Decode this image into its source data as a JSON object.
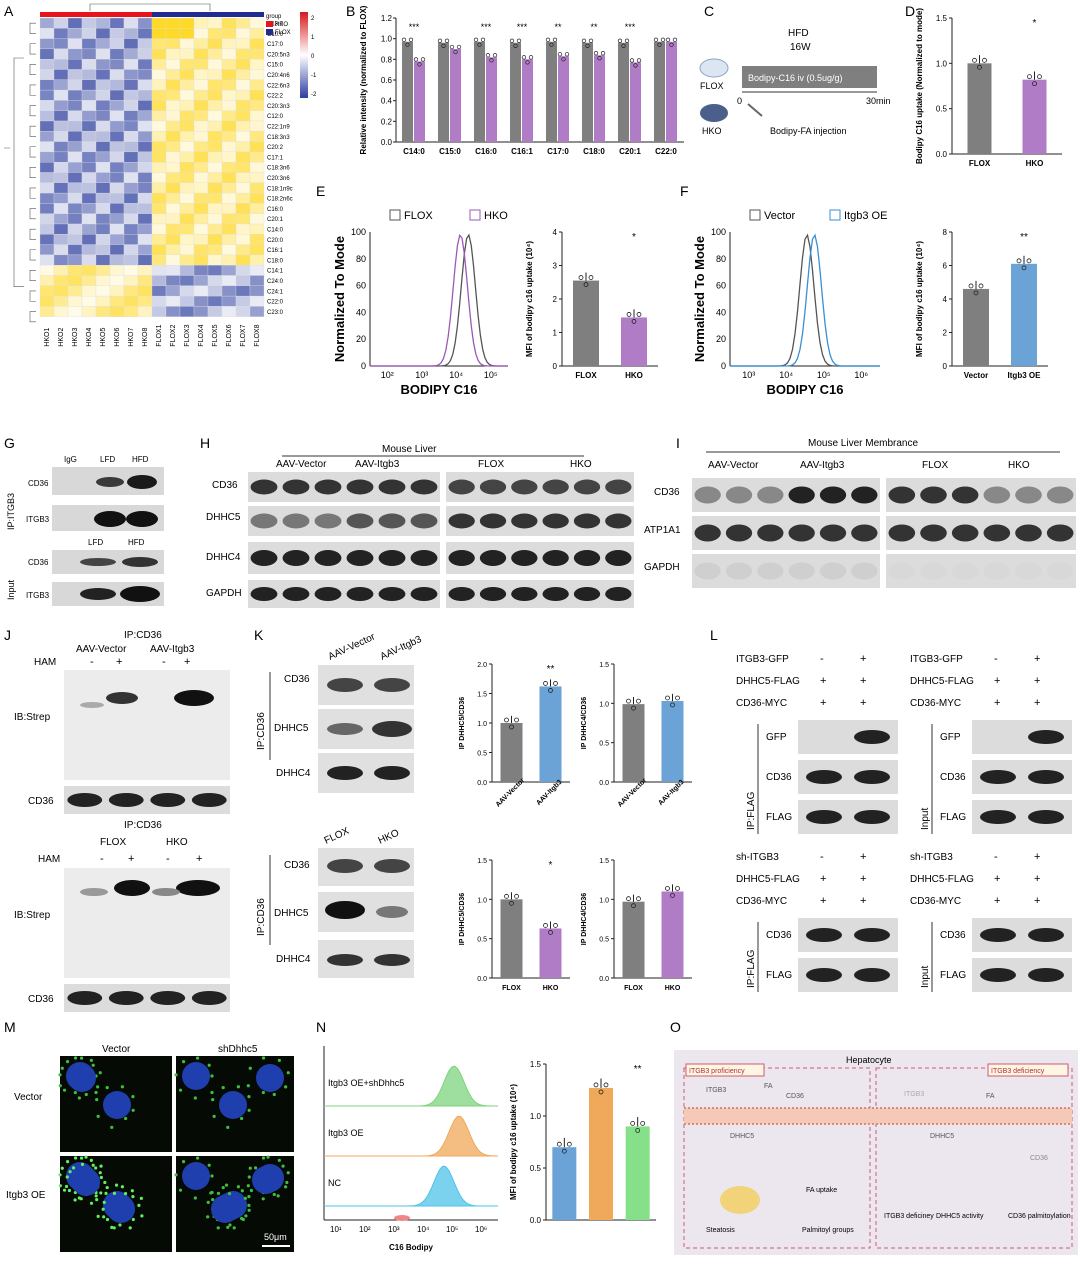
{
  "panels": {
    "A": "A",
    "B": "B",
    "C": "C",
    "D": "D",
    "E": "E",
    "F": "F",
    "G": "G",
    "H": "H",
    "I": "I",
    "J": "J",
    "K": "K",
    "L": "L",
    "M": "M",
    "N": "N",
    "O": "O"
  },
  "heatmap": {
    "rows": [
      "C13:0",
      "C10:0",
      "C17:0",
      "C20:5n3",
      "C15:0",
      "C20:4n6",
      "C22:6n3",
      "C22:2",
      "C20:3n3",
      "C12:0",
      "C22:1n9",
      "C18:3n3",
      "C20:2",
      "C17:1",
      "C18:3n6",
      "C20:3n6",
      "C18:1n9c",
      "C18:2n6c",
      "C16:0",
      "C20:1",
      "C14:0",
      "C20:0",
      "C16:1",
      "C18:0",
      "C14:1",
      "C24:0",
      "C24:1",
      "C22:0",
      "C23:0"
    ],
    "cols": [
      "HKO1",
      "HKO2",
      "HKO3",
      "HKO4",
      "HKO5",
      "HKO6",
      "HKO7",
      "HKO8",
      "FLOX1",
      "FLOX2",
      "FLOX3",
      "FLOX4",
      "FLOX5",
      "FLOX6",
      "FLOX7",
      "FLOX8"
    ],
    "legend_title": "group",
    "legend_hko": "HKO",
    "legend_flox": "FLOX",
    "scale_ticks": [
      "2",
      "1",
      "0",
      "-1",
      "-2"
    ],
    "colors": {
      "high": "#d7191c",
      "mid": "#ffffff",
      "low": "#2c3e9f",
      "hko": "#e8141b",
      "flox": "#1f2b8f"
    }
  },
  "chart_data": [
    {
      "type": "bar",
      "panel": "B",
      "ylabel": "Relative intensity (normalized to FLOX)",
      "ylim": [
        0,
        1.2
      ],
      "yticks": [
        "0.0",
        "0.2",
        "0.4",
        "0.6",
        "0.8",
        "1.0",
        "1.2"
      ],
      "categories": [
        "C14:0",
        "C15:0",
        "C16:0",
        "C16:1",
        "C17:0",
        "C18:0",
        "C20:1",
        "C22:0"
      ],
      "series": [
        {
          "values": [
            0.97,
            0.96,
            0.97,
            0.96,
            0.97,
            0.96,
            0.96,
            0.97
          ],
          "color": "#7f7f7f"
        },
        {
          "values": [
            0.78,
            0.9,
            0.82,
            0.8,
            0.83,
            0.84,
            0.77,
            0.97
          ],
          "color": "#b07cc6"
        }
      ],
      "significance": [
        "***",
        "",
        "***",
        "***",
        "**",
        "**",
        "***",
        ""
      ]
    },
    {
      "type": "bar",
      "panel": "D",
      "ylabel": "Bodipy C16 uptake (Normalized to mode)",
      "ylim": [
        0,
        1.5
      ],
      "yticks": [
        "0.0",
        "0.5",
        "1.0",
        "1.5"
      ],
      "categories": [
        "FLOX",
        "HKO"
      ],
      "values": [
        1.0,
        0.82
      ],
      "colors": [
        "#7f7f7f",
        "#b07cc6"
      ],
      "significance": "*"
    },
    {
      "type": "line",
      "panel": "E",
      "xlabel": "BODIPY C16",
      "ylabel": "Normalized To Mode",
      "yticks": [
        "0",
        "20",
        "40",
        "60",
        "80",
        "100"
      ],
      "xticks": [
        "10²",
        "10³",
        "10⁴",
        "10⁵"
      ],
      "legend": [
        "FLOX",
        "HKO"
      ],
      "colors": [
        "#555555",
        "#9b59b6"
      ],
      "peaks": [
        4.35,
        4.12
      ]
    },
    {
      "type": "bar",
      "panel": "E-bar",
      "ylabel": "MFI of bodipy c16 uptake (10⁴)",
      "ylim": [
        0,
        4
      ],
      "yticks": [
        "0",
        "1",
        "2",
        "3",
        "4"
      ],
      "categories": [
        "FLOX",
        "HKO"
      ],
      "values": [
        2.55,
        1.45
      ],
      "colors": [
        "#7f7f7f",
        "#b07cc6"
      ],
      "significance": "*"
    },
    {
      "type": "line",
      "panel": "F",
      "xlabel": "BODIPY C16",
      "ylabel": "Normalized To Mode",
      "yticks": [
        "0",
        "20",
        "40",
        "60",
        "80",
        "100"
      ],
      "xticks": [
        "10³",
        "10⁴",
        "10⁵",
        "10⁶"
      ],
      "legend": [
        "Vector",
        "Itgb3 OE"
      ],
      "colors": [
        "#555555",
        "#3a8fd1"
      ],
      "peaks": [
        4.55,
        4.75
      ]
    },
    {
      "type": "bar",
      "panel": "F-bar",
      "ylabel": "MFI of bodipy c16 uptake (10⁴)",
      "ylim": [
        0,
        8
      ],
      "yticks": [
        "0",
        "2",
        "4",
        "6",
        "8"
      ],
      "categories": [
        "Vector",
        "Itgb3 OE"
      ],
      "values": [
        4.6,
        6.1
      ],
      "colors": [
        "#7f7f7f",
        "#6ba3d6"
      ],
      "significance": "**"
    },
    {
      "type": "bar",
      "panel": "K1",
      "ylabel": "IP DHHC5/CD36",
      "ylim": [
        0,
        2.0
      ],
      "yticks": [
        "0.0",
        "0.5",
        "1.0",
        "1.5",
        "2.0"
      ],
      "categories": [
        "AAV-Vector",
        "AAV-Itgb3"
      ],
      "values": [
        1.0,
        1.62
      ],
      "colors": [
        "#7f7f7f",
        "#6ba3d6"
      ],
      "significance": "**"
    },
    {
      "type": "bar",
      "panel": "K2",
      "ylabel": "IP DHHC4/CD36",
      "ylim": [
        0,
        1.5
      ],
      "yticks": [
        "0.0",
        "0.5",
        "1.0",
        "1.5"
      ],
      "categories": [
        "AAV-Vector",
        "AAV-Itgb3"
      ],
      "values": [
        0.99,
        1.03
      ],
      "colors": [
        "#7f7f7f",
        "#6ba3d6"
      ],
      "significance": ""
    },
    {
      "type": "bar",
      "panel": "K3",
      "ylabel": "IP DHHC5/CD36",
      "ylim": [
        0,
        1.5
      ],
      "yticks": [
        "0.0",
        "0.5",
        "1.0",
        "1.5"
      ],
      "categories": [
        "FLOX",
        "HKO"
      ],
      "values": [
        1.0,
        0.63
      ],
      "colors": [
        "#7f7f7f",
        "#b07cc6"
      ],
      "significance": "*"
    },
    {
      "type": "bar",
      "panel": "K4",
      "ylabel": "IP DHHC4/CD36",
      "ylim": [
        0,
        1.5
      ],
      "yticks": [
        "0.0",
        "0.5",
        "1.0",
        "1.5"
      ],
      "categories": [
        "FLOX",
        "HKO"
      ],
      "values": [
        0.97,
        1.1
      ],
      "colors": [
        "#7f7f7f",
        "#b07cc6"
      ],
      "significance": ""
    },
    {
      "type": "line",
      "panel": "N",
      "xlabel": "C16 Bodipy",
      "xticks": [
        "10¹",
        "10²",
        "10³",
        "10⁴",
        "10⁵",
        "10⁶"
      ],
      "series_labels": [
        "Itgb3 OE+shDhhc5",
        "Itgb3 OE",
        "NC"
      ],
      "colors": [
        "#7ed37e",
        "#f0a85a",
        "#4fc3e8"
      ]
    },
    {
      "type": "bar",
      "panel": "N-bar",
      "ylabel": "MFI of bodipy c16 uptake (10⁴)",
      "ylim": [
        0,
        1.5
      ],
      "yticks": [
        "0.0",
        "0.5",
        "1.0",
        "1.5"
      ],
      "values": [
        0.7,
        1.27,
        0.9
      ],
      "colors": [
        "#6ba3d6",
        "#f0a85a",
        "#86e08a"
      ],
      "significance": "**"
    }
  ],
  "panelC": {
    "hfd": "HFD",
    "weeks": "16W",
    "flox": "FLOX",
    "hko": "HKO",
    "bar": "Bodipy-C16 iv (0.5ug/g)",
    "t0": "0",
    "t1": "30min",
    "inj": "Bodipy-FA injection"
  },
  "panelG": {
    "side": "IP:ITGB3",
    "input": "Input",
    "cols": [
      "IgG",
      "LFD",
      "HFD"
    ],
    "cols2": [
      "LFD",
      "HFD"
    ],
    "rows": [
      "CD36",
      "ITGB3"
    ]
  },
  "panelH": {
    "title": "Mouse Liver",
    "g1": "AAV-Vector",
    "g2": "AAV-Itgb3",
    "g3": "FLOX",
    "g4": "HKO",
    "rows": [
      "CD36",
      "DHHC5",
      "DHHC4",
      "GAPDH"
    ]
  },
  "panelI": {
    "title": "Mouse Liver Membrance",
    "g1": "AAV-Vector",
    "g2": "AAV-Itgb3",
    "g3": "FLOX",
    "g4": "HKO",
    "rows": [
      "CD36",
      "ATP1A1",
      "GAPDH"
    ]
  },
  "panelJ": {
    "ip": "IP:CD36",
    "g1": "AAV-Vector",
    "g2": "AAV-Itgb3",
    "g3": "FLOX",
    "g4": "HKO",
    "ham": "HAM",
    "minus": "-",
    "plus": "+",
    "ib": "IB:Strep",
    "cd36": "CD36"
  },
  "panelK": {
    "ip": "IP:CD36",
    "g1": "AAV-Vector",
    "g2": "AAV-Itgb3",
    "g3": "FLOX",
    "g4": "HKO",
    "rows": [
      "CD36",
      "DHHC5",
      "DHHC4"
    ]
  },
  "panelL": {
    "itgb3": "ITGB3-GFP",
    "dhhc5": "DHHC5-FLAG",
    "cd36": "CD36-MYC",
    "sh": "sh-ITGB3",
    "ipflag": "IP:FLAG",
    "input": "Input",
    "gfp": "GFP",
    "cd36band": "CD36",
    "flag": "FLAG",
    "minus": "-",
    "plus": "+"
  },
  "panelM": {
    "col1": "Vector",
    "col2": "shDhhc5",
    "row1": "Vector",
    "row2": "Itgb3 OE",
    "scale": "50μm"
  },
  "panelO": {
    "title": "Hepatocyte",
    "left": "ITGB3 proficiency",
    "right": "ITGB3 deficiency",
    "itgb3": "ITGB3",
    "fa": "FA",
    "cd36": "CD36",
    "dhhc5": "DHHC5",
    "uptake": "FA uptake",
    "steatosis": "Steatosis",
    "palm": "Palmitoyl groups",
    "f1": "ITGB3 deficiney",
    "f2": "DHHC5 activity",
    "f3": "CD36 palmitoylation"
  }
}
